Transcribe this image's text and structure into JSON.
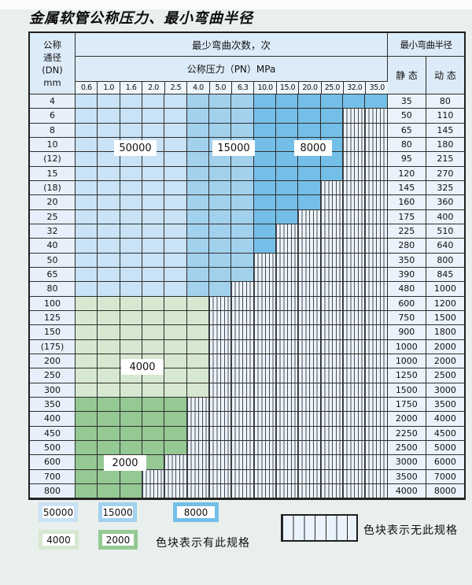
{
  "title": "金属软管公称压力、最小弯曲半径",
  "header": {
    "dn_lines": [
      "公称",
      "通径",
      "(DN)",
      "mm"
    ],
    "cycles_label": "最少弯曲次数，次",
    "pressure_label": "公称压力（PN）MPa",
    "pressures": [
      "0.6",
      "1.0",
      "1.6",
      "2.0",
      "2.5",
      "4.0",
      "5.0",
      "6.3",
      "10.0",
      "15.0",
      "20.0",
      "25.0",
      "32.0",
      "35.0"
    ],
    "radius_label": "最小弯曲半径",
    "static_label": "静 态",
    "dynamic_label": "动 态"
  },
  "palette": {
    "c50000": "#c9e2f5",
    "c15000": "#a2d1ee",
    "c8000": "#74bfe7",
    "c4000": "#d7e8d0",
    "c2000": "#94c994"
  },
  "blue_col_levels": [
    "c50000",
    "c50000",
    "c50000",
    "c50000",
    "c50000",
    "c15000",
    "c15000",
    "c15000",
    "c8000",
    "c8000",
    "c8000",
    "c8000",
    "c8000",
    "c8000"
  ],
  "rows": [
    {
      "dn": "4",
      "colored": 14,
      "zone": "blue",
      "static": "35",
      "dynamic": "80"
    },
    {
      "dn": "6",
      "colored": 12,
      "zone": "blue",
      "static": "50",
      "dynamic": "110"
    },
    {
      "dn": "8",
      "colored": 12,
      "zone": "blue",
      "static": "65",
      "dynamic": "145"
    },
    {
      "dn": "10",
      "colored": 12,
      "zone": "blue",
      "static": "80",
      "dynamic": "180"
    },
    {
      "dn": "(12)",
      "colored": 12,
      "zone": "blue",
      "static": "95",
      "dynamic": "215"
    },
    {
      "dn": "15",
      "colored": 12,
      "zone": "blue",
      "static": "120",
      "dynamic": "270"
    },
    {
      "dn": "(18)",
      "colored": 11,
      "zone": "blue",
      "static": "145",
      "dynamic": "325"
    },
    {
      "dn": "20",
      "colored": 11,
      "zone": "blue",
      "static": "160",
      "dynamic": "360"
    },
    {
      "dn": "25",
      "colored": 10,
      "zone": "blue",
      "static": "175",
      "dynamic": "400"
    },
    {
      "dn": "32",
      "colored": 9,
      "zone": "blue",
      "static": "225",
      "dynamic": "510"
    },
    {
      "dn": "40",
      "colored": 9,
      "zone": "blue",
      "static": "280",
      "dynamic": "640"
    },
    {
      "dn": "50",
      "colored": 8,
      "zone": "blue",
      "static": "350",
      "dynamic": "800"
    },
    {
      "dn": "65",
      "colored": 8,
      "zone": "blue",
      "static": "390",
      "dynamic": "845"
    },
    {
      "dn": "80",
      "colored": 7,
      "zone": "blue",
      "static": "480",
      "dynamic": "1000"
    },
    {
      "dn": "100",
      "colored": 6,
      "zone": "g4",
      "static": "600",
      "dynamic": "1200"
    },
    {
      "dn": "125",
      "colored": 6,
      "zone": "g4",
      "static": "750",
      "dynamic": "1500"
    },
    {
      "dn": "150",
      "colored": 6,
      "zone": "g4",
      "static": "900",
      "dynamic": "1800"
    },
    {
      "dn": "(175)",
      "colored": 6,
      "zone": "g4",
      "static": "1000",
      "dynamic": "2000"
    },
    {
      "dn": "200",
      "colored": 6,
      "zone": "g4",
      "static": "1000",
      "dynamic": "2000"
    },
    {
      "dn": "250",
      "colored": 6,
      "zone": "g4",
      "static": "1250",
      "dynamic": "2500"
    },
    {
      "dn": "300",
      "colored": 6,
      "zone": "g4",
      "static": "1500",
      "dynamic": "3000"
    },
    {
      "dn": "350",
      "colored": 5,
      "zone": "g2",
      "static": "1750",
      "dynamic": "3500"
    },
    {
      "dn": "400",
      "colored": 5,
      "zone": "g2",
      "static": "2000",
      "dynamic": "4000"
    },
    {
      "dn": "450",
      "colored": 5,
      "zone": "g2",
      "static": "2250",
      "dynamic": "4500"
    },
    {
      "dn": "500",
      "colored": 5,
      "zone": "g2",
      "static": "2500",
      "dynamic": "5000"
    },
    {
      "dn": "600",
      "colored": 4,
      "zone": "g2",
      "static": "3000",
      "dynamic": "6000"
    },
    {
      "dn": "700",
      "colored": 3,
      "zone": "g2",
      "static": "3500",
      "dynamic": "7000"
    },
    {
      "dn": "800",
      "colored": 3,
      "zone": "g2",
      "static": "4000",
      "dynamic": "8000"
    }
  ],
  "inline_labels": [
    "50000",
    "15000",
    "8000",
    "4000",
    "2000"
  ],
  "legend": {
    "row1": [
      {
        "label": "50000",
        "color": "c50000"
      },
      {
        "label": "15000",
        "color": "c15000"
      },
      {
        "label": "8000",
        "color": "c8000"
      }
    ],
    "row2": [
      {
        "label": "4000",
        "color": "c4000"
      },
      {
        "label": "2000",
        "color": "c2000"
      }
    ],
    "has_spec": "色块表示有此规格",
    "no_spec": "色块表示无此规格"
  }
}
